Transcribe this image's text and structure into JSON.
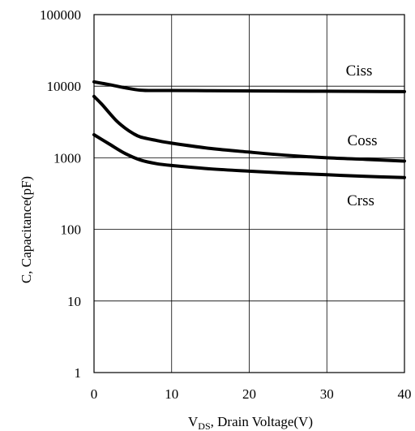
{
  "chart_data": {
    "type": "line",
    "title": "",
    "xlabel": {
      "prefix": "V",
      "subscript": "DS",
      "suffix": ", Drain Voltage(V)"
    },
    "ylabel": "C, Capacitance(pF)",
    "x_scale": "linear",
    "y_scale": "log",
    "xlim": [
      0,
      40
    ],
    "ylim": [
      1,
      100000
    ],
    "x_ticks": [
      0,
      10,
      20,
      30,
      40
    ],
    "x_tick_labels": [
      "0",
      "10",
      "20",
      "30",
      "40"
    ],
    "y_ticks": [
      1,
      10,
      100,
      1000,
      10000,
      100000
    ],
    "y_tick_labels": [
      "1",
      "10",
      "100",
      "1000",
      "10000",
      "100000"
    ],
    "grid": true,
    "legend": "none",
    "series": [
      {
        "name": "Ciss",
        "x": [
          0,
          2,
          4,
          6,
          8,
          10,
          15,
          20,
          25,
          30,
          35,
          40
        ],
        "y": [
          11500,
          10500,
          9500,
          8800,
          8700,
          8700,
          8650,
          8600,
          8550,
          8500,
          8450,
          8400
        ]
      },
      {
        "name": "Coss",
        "x": [
          0,
          1,
          2,
          3,
          4,
          5,
          6,
          8,
          10,
          15,
          20,
          25,
          30,
          35,
          40
        ],
        "y": [
          7200,
          5600,
          4200,
          3200,
          2600,
          2200,
          1950,
          1750,
          1600,
          1350,
          1200,
          1080,
          1000,
          950,
          900
        ]
      },
      {
        "name": "Crss",
        "x": [
          0,
          2,
          4,
          6,
          8,
          10,
          15,
          20,
          25,
          30,
          35,
          40
        ],
        "y": [
          2100,
          1550,
          1150,
          930,
          830,
          780,
          700,
          650,
          610,
          580,
          550,
          530
        ]
      }
    ]
  }
}
